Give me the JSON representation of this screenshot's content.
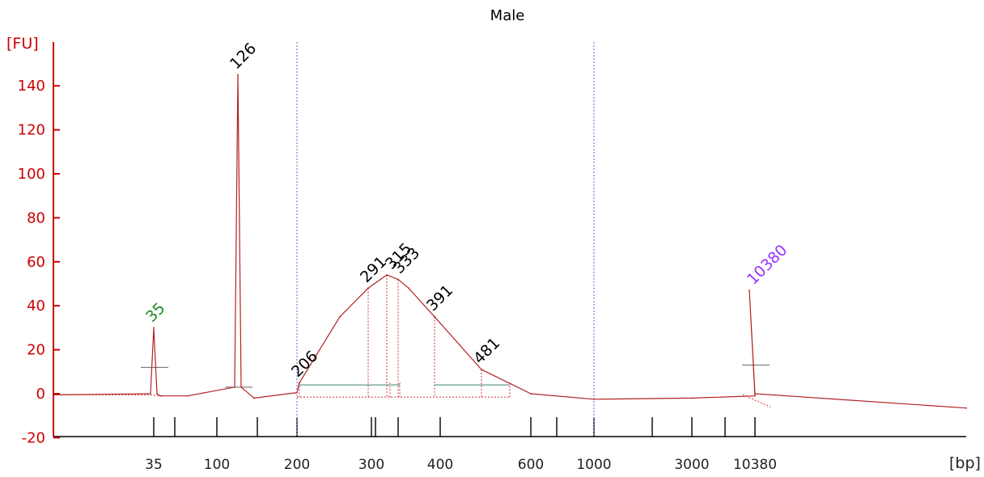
{
  "chart_data": {
    "type": "line",
    "title": "Male",
    "ylabel": "[FU]",
    "xlabel": "[bp]",
    "ylim": [
      -20,
      150
    ],
    "yticks": [
      -20,
      0,
      20,
      40,
      60,
      80,
      100,
      120,
      140
    ],
    "xticks": [
      "35",
      "100",
      "200",
      "300",
      "400",
      "600",
      "1000",
      "3000",
      "10380"
    ],
    "grid": false,
    "colors": {
      "trace": "#b22222",
      "axis": "#cc0000",
      "baseline": "#cc3333",
      "region_bar": "#5f9e8f",
      "vline": "#6666cc",
      "marker_lower": "#228b22",
      "marker_upper": "#9933ff",
      "label": "#000000"
    },
    "series": [
      {
        "values": [
          [
            "start",
            -0.5
          ],
          [
            "35",
            0.0
          ],
          [
            "35",
            30.0
          ],
          [
            "35",
            0.0
          ],
          [
            "35",
            -1.0
          ],
          [
            "100",
            -1.0
          ],
          [
            "126",
            3.0
          ],
          [
            "126",
            145.0
          ],
          [
            "126",
            3.0
          ],
          [
            "126",
            -2.0
          ],
          [
            "200",
            0.5
          ],
          [
            "206",
            5.0
          ],
          [
            "260",
            35.0
          ],
          [
            "291",
            48.0
          ],
          [
            "315",
            54.0
          ],
          [
            "333",
            52.0
          ],
          [
            "350",
            48.0
          ],
          [
            "391",
            35.0
          ],
          [
            "481",
            11.0
          ],
          [
            "600",
            0.0
          ],
          [
            "1000",
            -2.5
          ],
          [
            "3000",
            -2.0
          ],
          [
            "10380",
            -1.0
          ],
          [
            "10380",
            47.0
          ],
          [
            "10380",
            0.0
          ],
          [
            "end",
            -6.5
          ]
        ]
      }
    ],
    "peaks": [
      {
        "label": "35",
        "x": "35",
        "y": 30,
        "color_key": "marker_lower"
      },
      {
        "label": "126",
        "x": "126",
        "y": 145,
        "color_key": "label"
      },
      {
        "label": "206",
        "x": "206",
        "y": 5,
        "color_key": "label"
      },
      {
        "label": "291",
        "x": "291",
        "y": 48,
        "color_key": "label"
      },
      {
        "label": "315",
        "x": "315",
        "y": 54,
        "color_key": "label"
      },
      {
        "label": "333",
        "x": "333",
        "y": 52,
        "color_key": "label"
      },
      {
        "label": "391",
        "x": "391",
        "y": 35,
        "color_key": "label"
      },
      {
        "label": "481",
        "x": "481",
        "y": 11,
        "color_key": "label"
      },
      {
        "label": "10380",
        "x": "10380",
        "y": 47,
        "color_key": "marker_upper"
      }
    ],
    "regions": [
      {
        "from": "206",
        "to": "320",
        "level": 4
      },
      {
        "from": "391",
        "to": "550",
        "level": 4
      }
    ]
  }
}
